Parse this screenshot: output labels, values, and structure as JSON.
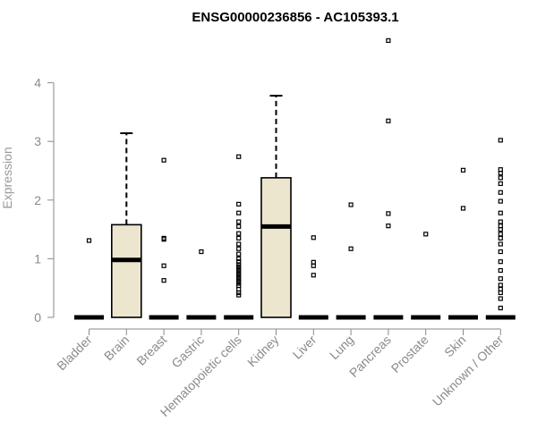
{
  "chart_data": {
    "type": "boxplot",
    "title": "ENSG00000236856 - AC105393.1",
    "ylabel": "Expression",
    "xlabel": "",
    "ylim": [
      0,
      4.8
    ],
    "yticks": [
      0,
      1,
      2,
      3,
      4
    ],
    "box_fill": "#ede6cf",
    "categories": [
      "Bladder",
      "Brain",
      "Breast",
      "Gastric",
      "Hematopoietic cells",
      "Kidney",
      "Liver",
      "Lung",
      "Pancreas",
      "Prostate",
      "Skin",
      "Unknown / Other"
    ],
    "boxes": [
      {
        "q1": 0,
        "median": 0,
        "q3": 0,
        "whisker_low": 0,
        "whisker_high": 0,
        "outliers": [
          1.31
        ]
      },
      {
        "q1": 0,
        "median": 0.98,
        "q3": 1.58,
        "whisker_low": 0,
        "whisker_high": 3.14,
        "outliers": []
      },
      {
        "q1": 0,
        "median": 0,
        "q3": 0,
        "whisker_low": 0,
        "whisker_high": 0,
        "outliers": [
          2.68,
          1.35,
          1.33,
          0.88,
          0.63
        ]
      },
      {
        "q1": 0,
        "median": 0,
        "q3": 0,
        "whisker_low": 0,
        "whisker_high": 0,
        "outliers": [
          1.12
        ]
      },
      {
        "q1": 0,
        "median": 0,
        "q3": 0,
        "whisker_low": 0,
        "whisker_high": 0,
        "outliers": [
          2.74,
          1.93,
          1.78,
          1.63,
          1.55,
          1.43,
          1.35,
          1.25,
          1.17,
          1.08,
          1.0,
          0.95,
          0.9,
          0.86,
          0.82,
          0.78,
          0.74,
          0.7,
          0.66,
          0.62,
          0.58,
          0.54,
          0.48,
          0.42,
          0.38
        ]
      },
      {
        "q1": 0,
        "median": 1.55,
        "q3": 2.38,
        "whisker_low": 0,
        "whisker_high": 3.78,
        "outliers": []
      },
      {
        "q1": 0,
        "median": 0,
        "q3": 0,
        "whisker_low": 0,
        "whisker_high": 0,
        "outliers": [
          1.36,
          0.94,
          0.88,
          0.72
        ]
      },
      {
        "q1": 0,
        "median": 0,
        "q3": 0,
        "whisker_low": 0,
        "whisker_high": 0,
        "outliers": [
          1.92,
          1.17
        ]
      },
      {
        "q1": 0,
        "median": 0,
        "q3": 0,
        "whisker_low": 0,
        "whisker_high": 0,
        "outliers": [
          4.72,
          3.35,
          1.77,
          1.56
        ]
      },
      {
        "q1": 0,
        "median": 0,
        "q3": 0,
        "whisker_low": 0,
        "whisker_high": 0,
        "outliers": [
          1.42
        ]
      },
      {
        "q1": 0,
        "median": 0,
        "q3": 0,
        "whisker_low": 0,
        "whisker_high": 0,
        "outliers": [
          2.51,
          1.86
        ]
      },
      {
        "q1": 0,
        "median": 0,
        "q3": 0,
        "whisker_low": 0,
        "whisker_high": 0,
        "outliers": [
          3.02,
          2.52,
          2.46,
          2.38,
          2.28,
          2.13,
          1.98,
          1.78,
          1.63,
          1.56,
          1.5,
          1.42,
          1.35,
          1.25,
          1.12,
          0.95,
          0.8,
          0.66,
          0.55,
          0.48,
          0.42,
          0.32,
          0.16
        ]
      }
    ]
  }
}
